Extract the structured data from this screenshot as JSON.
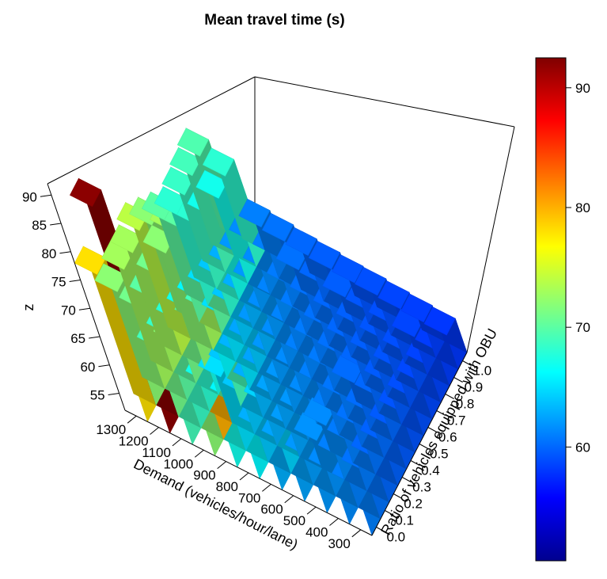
{
  "chart_data": {
    "type": "bar3d",
    "title": "Mean travel time (s)",
    "xlabel": "Demand (vehicles/hour/lane)",
    "ylabel": "Ratio of vehicles equipped with OBU",
    "zlabel": "z",
    "x_ticks": [
      "300",
      "400",
      "500",
      "600",
      "700",
      "800",
      "900",
      "1000",
      "1100",
      "1200",
      "1300"
    ],
    "y_ticks": [
      "0.0",
      "0.1",
      "0.2",
      "0.3",
      "0.4",
      "0.5",
      "0.6",
      "0.7",
      "0.8",
      "0.9",
      "1.0"
    ],
    "z_ticks": [
      "55",
      "60",
      "65",
      "70",
      "75",
      "80",
      "85",
      "90"
    ],
    "zlim": [
      52,
      92
    ],
    "colorbar": {
      "ticks": [
        "60",
        "70",
        "80",
        "90"
      ],
      "range": [
        50.5,
        92.5
      ]
    },
    "values": [
      [
        61.0,
        60.5,
        60.0,
        59.8,
        59.5,
        59.2,
        59.0,
        58.7,
        58.5,
        58.2,
        58.0
      ],
      [
        61.5,
        61.0,
        60.8,
        60.5,
        60.2,
        60.0,
        59.5,
        59.2,
        59.0,
        58.6,
        58.3
      ],
      [
        62.0,
        61.8,
        61.5,
        61.0,
        60.6,
        60.2,
        60.0,
        59.6,
        59.3,
        59.0,
        58.6
      ],
      [
        62.5,
        62.2,
        62.0,
        61.5,
        61.0,
        60.8,
        60.4,
        60.0,
        59.7,
        59.3,
        59.0
      ],
      [
        63.0,
        64.5,
        62.5,
        62.0,
        61.5,
        61.0,
        60.8,
        60.4,
        60.0,
        59.6,
        59.2
      ],
      [
        66.0,
        64.0,
        63.0,
        62.5,
        62.0,
        61.6,
        61.2,
        60.8,
        60.4,
        60.0,
        59.6
      ],
      [
        67.0,
        65.0,
        64.0,
        63.2,
        62.6,
        62.0,
        61.6,
        61.2,
        60.8,
        60.4,
        60.0
      ],
      [
        72.0,
        80.0,
        70.0,
        69.0,
        65.0,
        64.0,
        63.0,
        62.0,
        61.5,
        61.0,
        60.5
      ],
      [
        69.0,
        68.5,
        68.0,
        67.0,
        66.0,
        65.0,
        64.0,
        63.0,
        62.0,
        61.5,
        61.0
      ],
      [
        92.0,
        71.0,
        70.0,
        71.0,
        72.0,
        73.0,
        70.0,
        68.0,
        67.0,
        67.0,
        68.0
      ],
      [
        78.0,
        72.0,
        73.0,
        73.0,
        74.0,
        72.0,
        70.0,
        68.0,
        68.5,
        69.0,
        69.5
      ]
    ]
  }
}
